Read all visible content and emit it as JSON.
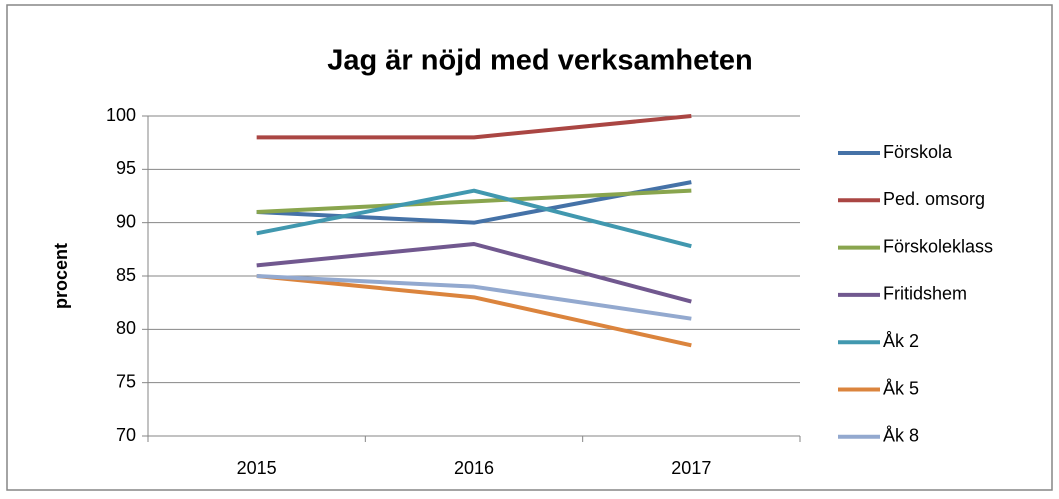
{
  "chart_data": {
    "type": "line",
    "title": "Jag är nöjd med verksamheten",
    "y_label": "procent",
    "categories": [
      "2015",
      "2016",
      "2017"
    ],
    "series": [
      {
        "name": "Förskola",
        "color": "#4572a7",
        "values": [
          91,
          90,
          93.8
        ]
      },
      {
        "name": "Ped. omsorg",
        "color": "#aa4643",
        "values": [
          98,
          98,
          100
        ]
      },
      {
        "name": "Förskoleklass",
        "color": "#89a54e",
        "values": [
          91,
          92,
          93
        ]
      },
      {
        "name": "Fritidshem",
        "color": "#71588f",
        "values": [
          86,
          88,
          82.6
        ]
      },
      {
        "name": "Åk 2",
        "color": "#4198af",
        "values": [
          89,
          93,
          87.8
        ]
      },
      {
        "name": "Åk 5",
        "color": "#db843d",
        "values": [
          85,
          83,
          78.5
        ]
      },
      {
        "name": "Åk 8",
        "color": "#93a9cf",
        "values": [
          85,
          84,
          81
        ]
      }
    ],
    "ylim": [
      70,
      100
    ],
    "yticks": [
      70,
      75,
      80,
      85,
      90,
      95,
      100
    ],
    "grid": true,
    "legend": "right"
  }
}
